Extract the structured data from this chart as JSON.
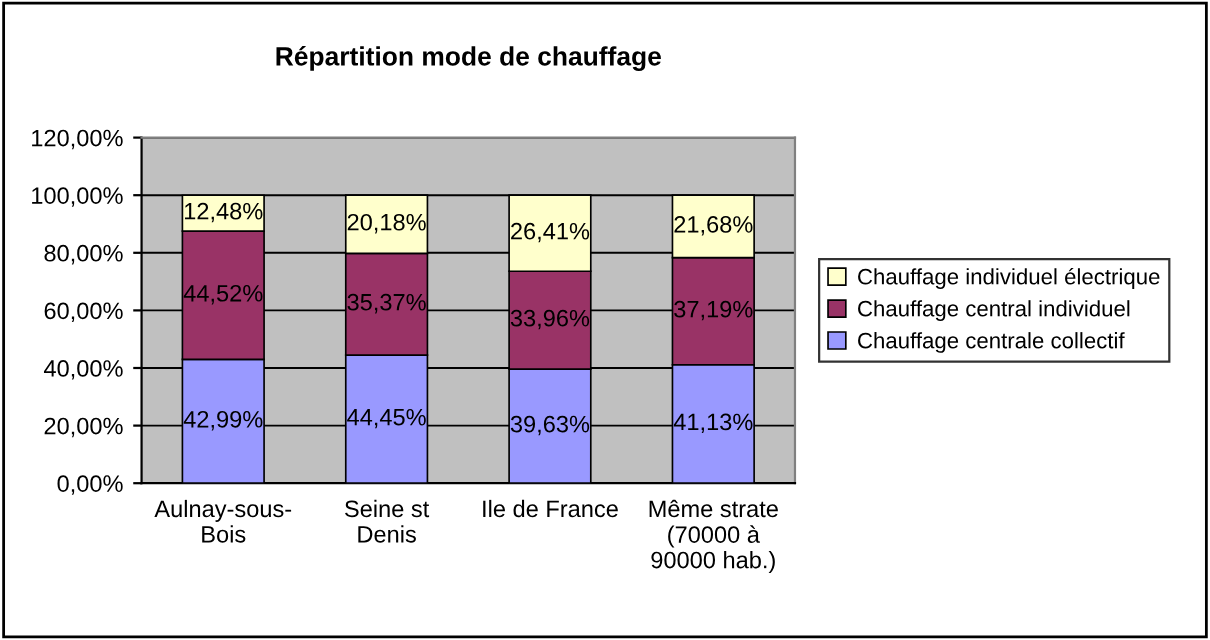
{
  "chart_data": {
    "type": "bar",
    "stacked": true,
    "title": "Répartition mode de chauffage",
    "categories": [
      "Aulnay-sous-\nBois",
      "Seine st\nDenis",
      "Ile de France",
      "Même strate\n(70000 à\n90000 hab.)"
    ],
    "series": [
      {
        "name": "Chauffage centrale collectif",
        "color": "#9999ff",
        "values": [
          42.99,
          44.45,
          39.63,
          41.13
        ],
        "value_labels": [
          "42,99%",
          "44,45%",
          "39,63%",
          "41,13%"
        ]
      },
      {
        "name": "Chauffage central individuel",
        "color": "#993366",
        "values": [
          44.52,
          35.37,
          33.96,
          37.19
        ],
        "value_labels": [
          "44,52%",
          "35,37%",
          "33,96%",
          "37,19%"
        ]
      },
      {
        "name": "Chauffage individuel électrique",
        "color": "#ffffcc",
        "values": [
          12.48,
          20.18,
          26.41,
          21.68
        ],
        "value_labels": [
          "12,48%",
          "20,18%",
          "26,41%",
          "21,68%"
        ]
      }
    ],
    "ylim": [
      0,
      120
    ],
    "yticks": [
      {
        "value": 0,
        "label": "0,00%"
      },
      {
        "value": 20,
        "label": "20,00%"
      },
      {
        "value": 40,
        "label": "40,00%"
      },
      {
        "value": 60,
        "label": "60,00%"
      },
      {
        "value": 80,
        "label": "80,00%"
      },
      {
        "value": 100,
        "label": "100,00%"
      },
      {
        "value": 120,
        "label": "120,00%"
      }
    ],
    "grid": "y",
    "legend": "right"
  }
}
